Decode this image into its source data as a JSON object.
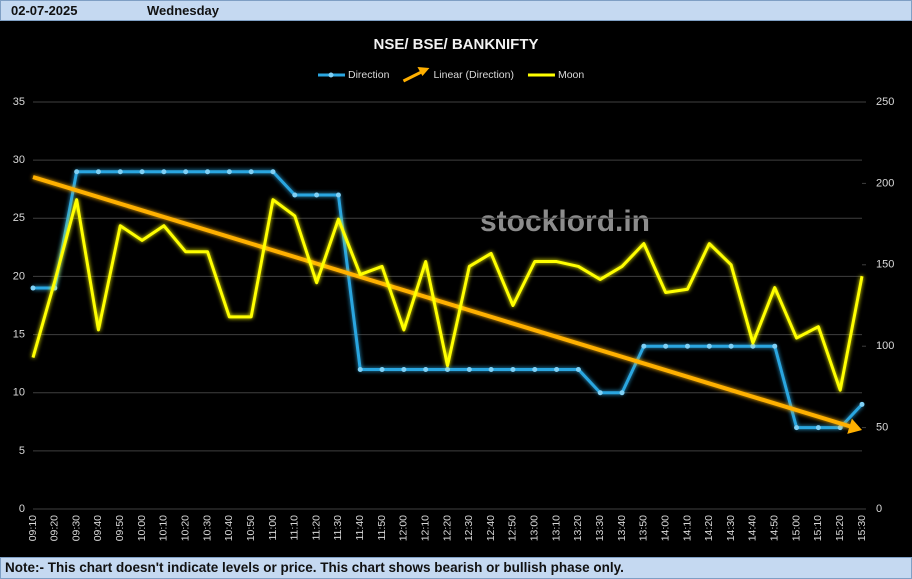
{
  "header": {
    "date": "02-07-2025",
    "day": "Wednesday"
  },
  "chart_data": {
    "type": "line",
    "title": "NSE/ BSE/ BANKNIFTY",
    "categories": [
      "09:10",
      "09:20",
      "09:30",
      "09:40",
      "09:50",
      "10:00",
      "10:10",
      "10:20",
      "10:30",
      "10:40",
      "10:50",
      "11:00",
      "11:10",
      "11:20",
      "11:30",
      "11:40",
      "11:50",
      "12:00",
      "12:10",
      "12:20",
      "12:30",
      "12:40",
      "12:50",
      "13:00",
      "13:10",
      "13:20",
      "13:30",
      "13:40",
      "13:50",
      "14:00",
      "14:10",
      "14:20",
      "14:30",
      "14:40",
      "14:50",
      "15:00",
      "15:10",
      "15:20",
      "15:30"
    ],
    "series": [
      {
        "name": "Direction",
        "color": "#2aa6e0",
        "axis": "y",
        "values": [
          19,
          19,
          29,
          29,
          29,
          29,
          29,
          29,
          29,
          29,
          29,
          29,
          27,
          27,
          27,
          12,
          12,
          12,
          12,
          12,
          12,
          12,
          12,
          12,
          12,
          12,
          10,
          10,
          14,
          14,
          14,
          14,
          14,
          14,
          14,
          7,
          7,
          7,
          9
        ],
        "trendline": {
          "name": "Linear (Direction)",
          "color": "#ffb000"
        }
      },
      {
        "name": "Moon",
        "color": "#ffff00",
        "axis": "y2",
        "values": [
          93,
          140,
          190,
          110,
          174,
          165,
          174,
          158,
          158,
          118,
          118,
          190,
          180,
          139,
          178,
          144,
          149,
          110,
          152,
          88,
          149,
          157,
          125,
          152,
          152,
          149,
          141,
          149,
          163,
          133,
          135,
          163,
          150,
          102,
          136,
          105,
          112,
          73,
          143
        ]
      }
    ],
    "ylim": [
      0,
      35
    ],
    "yticks": [
      0,
      5,
      10,
      15,
      20,
      25,
      30,
      35
    ],
    "y2lim": [
      0,
      250
    ],
    "y2ticks": [
      0,
      50,
      100,
      150,
      200,
      250
    ],
    "grid": true,
    "legend": "top",
    "watermark": "stocklord.in"
  },
  "footer": {
    "note": "Note:- This chart doesn't indicate levels or price. This chart shows bearish or bullish phase only."
  }
}
